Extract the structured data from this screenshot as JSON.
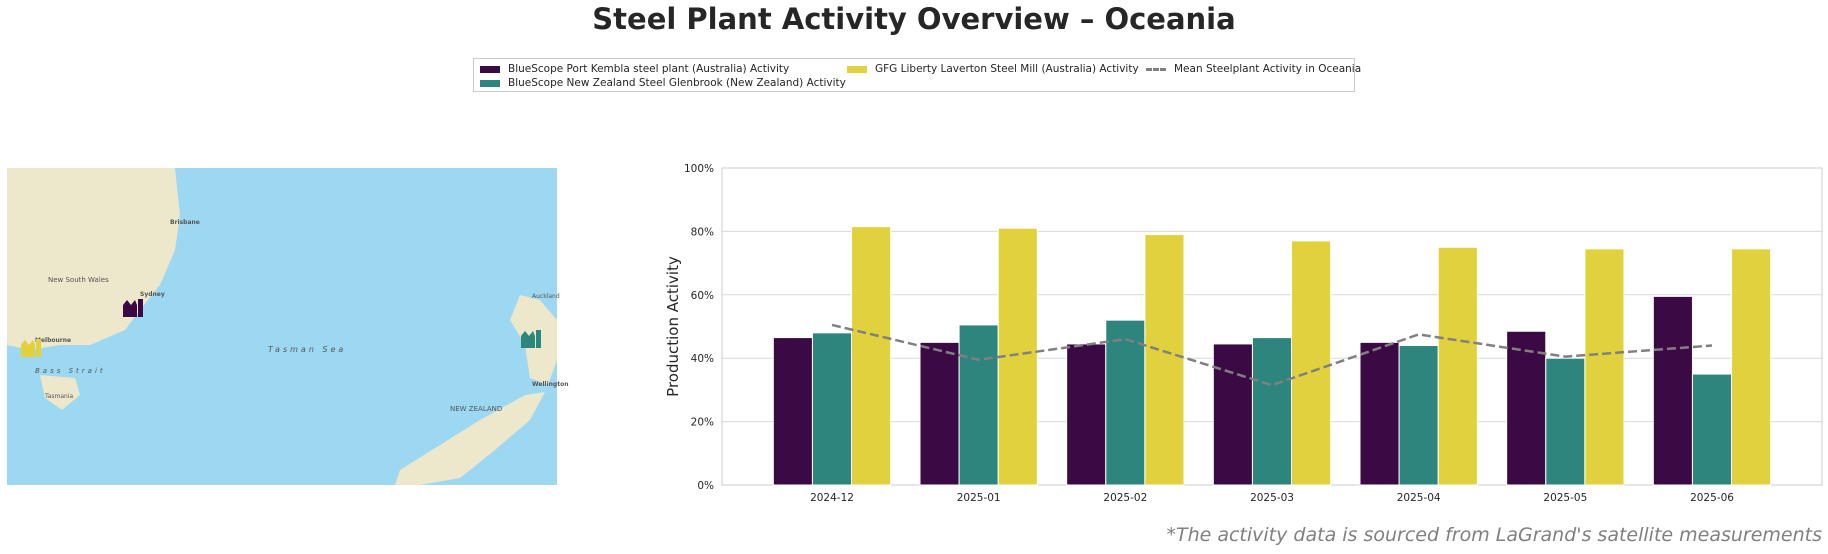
{
  "chart_data": {
    "type": "bar",
    "title": "Steel Plant Activity Overview – Oceania",
    "y_label": "Production Activity",
    "categories": [
      "2024-12",
      "2025-01",
      "2025-02",
      "2025-03",
      "2025-04",
      "2025-05",
      "2025-06"
    ],
    "series": [
      {
        "name": "BlueScope Port Kembla steel plant (Australia) Activity",
        "color": "#3b0a45",
        "values": [
          46.5,
          45,
          44.5,
          44.5,
          45,
          48.5,
          59.5
        ]
      },
      {
        "name": "BlueScope New Zealand Steel Glenbrook (New Zealand) Activity",
        "color": "#2e857e",
        "values": [
          48,
          50.5,
          52,
          46.5,
          44,
          40,
          35
        ]
      },
      {
        "name": "GFG Liberty Laverton Steel Mill (Australia) Activity",
        "color": "#e1d23d",
        "values": [
          81.5,
          81,
          79,
          77,
          75,
          74.5,
          74.5
        ]
      },
      {
        "name": "Mean Steelplant Activity in Oceania",
        "type": "line",
        "color": "#808080",
        "values": [
          50.5,
          39.5,
          46,
          31.5,
          47.5,
          40.5,
          44
        ]
      }
    ],
    "ylim": [
      0,
      100
    ],
    "yticks": [
      {
        "value": 0,
        "label": "0%"
      },
      {
        "value": 20,
        "label": "20%"
      },
      {
        "value": 40,
        "label": "40%"
      },
      {
        "value": 60,
        "label": "60%"
      },
      {
        "value": 80,
        "label": "80%"
      },
      {
        "value": 100,
        "label": "100%"
      }
    ],
    "grid": true,
    "footnote": "*The activity data is sourced from LaGrand's satellite measurements"
  },
  "map": {
    "labels": [
      "Brisbane",
      "Sydney",
      "New South Wales",
      "Melbourne",
      "Bass Strait",
      "Tasmania",
      "Tasman Sea",
      "Auckland",
      "Wellington",
      "NEW ZEALAND"
    ]
  }
}
